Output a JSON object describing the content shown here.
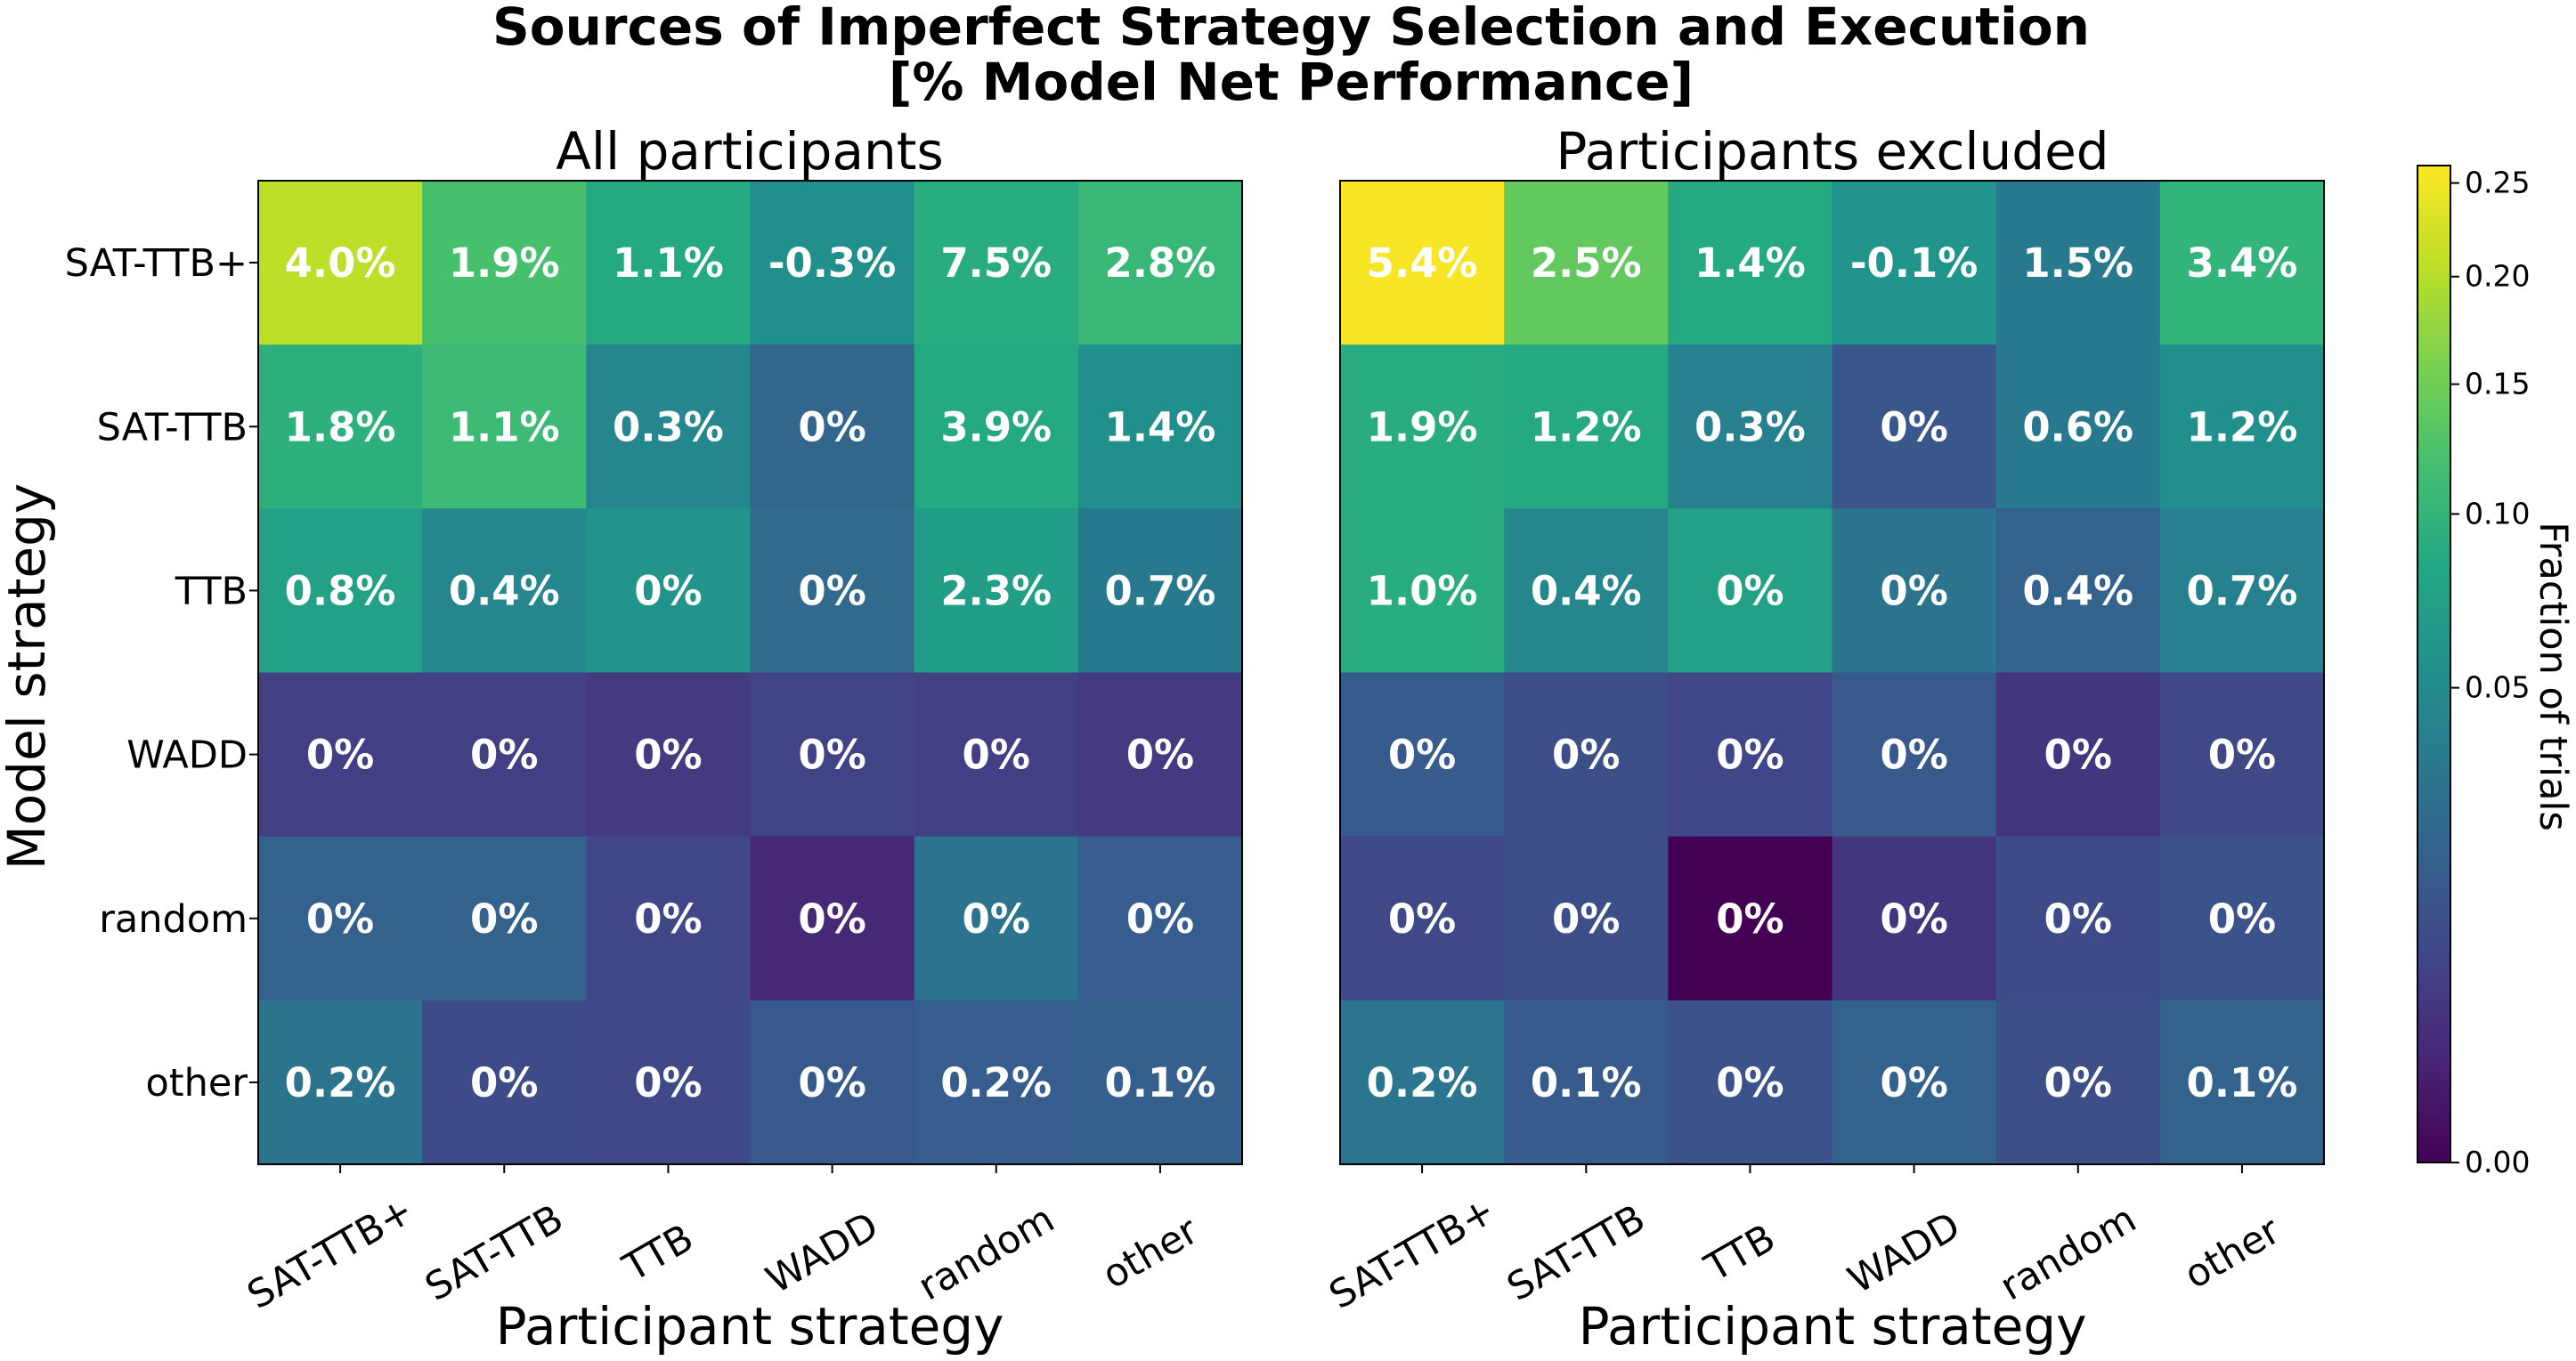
{
  "chart_data": {
    "type": "heatmap",
    "title_lines": [
      "Sources of Imperfect Strategy Selection and Execution",
      "[% Model Net Performance]"
    ],
    "xlabel": "Participant strategy",
    "ylabel": "Model strategy",
    "row_labels": [
      "SAT-TTB+",
      "SAT-TTB",
      "TTB",
      "WADD",
      "random",
      "other"
    ],
    "col_labels": [
      "SAT-TTB+",
      "SAT-TTB",
      "TTB",
      "WADD",
      "random",
      "other"
    ],
    "colorscale": "viridis",
    "colorbar": {
      "label": "Fraction of trials",
      "ticks": [
        "0.00",
        "0.05",
        "0.10",
        "0.15",
        "0.20",
        "0.25"
      ],
      "range": [
        0,
        0.26
      ]
    },
    "panels": [
      {
        "subtitle": "All participants",
        "fraction": [
          [
            0.205,
            0.12,
            0.085,
            0.055,
            0.09,
            0.105
          ],
          [
            0.095,
            0.11,
            0.045,
            0.022,
            0.085,
            0.055
          ],
          [
            0.075,
            0.045,
            0.06,
            0.025,
            0.07,
            0.035
          ],
          [
            0.006,
            0.006,
            0.005,
            0.007,
            0.006,
            0.005
          ],
          [
            0.019,
            0.02,
            0.008,
            0.002,
            0.03,
            0.017
          ],
          [
            0.03,
            0.01,
            0.009,
            0.015,
            0.017,
            0.018
          ]
        ],
        "labels": [
          [
            "4.0%",
            "1.9%",
            "1.1%",
            "-0.3%",
            "7.5%",
            "2.8%"
          ],
          [
            "1.8%",
            "1.1%",
            "0.3%",
            "0%",
            "3.9%",
            "1.4%"
          ],
          [
            "0.8%",
            "0.4%",
            "0%",
            "0%",
            "2.3%",
            "0.7%"
          ],
          [
            "0%",
            "0%",
            "0%",
            "0%",
            "0%",
            "0%"
          ],
          [
            "0%",
            "0%",
            "0%",
            "0%",
            "0%",
            "0%"
          ],
          [
            "0.2%",
            "0%",
            "0%",
            "0%",
            "0.2%",
            "0.1%"
          ]
        ]
      },
      {
        "subtitle": "Participants excluded",
        "fraction": [
          [
            0.255,
            0.14,
            0.085,
            0.06,
            0.035,
            0.1
          ],
          [
            0.09,
            0.085,
            0.04,
            0.014,
            0.035,
            0.055
          ],
          [
            0.09,
            0.045,
            0.075,
            0.03,
            0.02,
            0.04
          ],
          [
            0.016,
            0.011,
            0.008,
            0.015,
            0.004,
            0.009
          ],
          [
            0.009,
            0.011,
            0.0,
            0.004,
            0.01,
            0.012
          ],
          [
            0.032,
            0.016,
            0.012,
            0.02,
            0.011,
            0.02
          ]
        ],
        "labels": [
          [
            "5.4%",
            "2.5%",
            "1.4%",
            "-0.1%",
            "1.5%",
            "3.4%"
          ],
          [
            "1.9%",
            "1.2%",
            "0.3%",
            "0%",
            "0.6%",
            "1.2%"
          ],
          [
            "1.0%",
            "0.4%",
            "0%",
            "0%",
            "0.4%",
            "0.7%"
          ],
          [
            "0%",
            "0%",
            "0%",
            "0%",
            "0%",
            "0%"
          ],
          [
            "0%",
            "0%",
            "0%",
            "0%",
            "0%",
            "0%"
          ],
          [
            "0.2%",
            "0.1%",
            "0%",
            "0%",
            "0%",
            "0.1%"
          ]
        ]
      }
    ]
  }
}
